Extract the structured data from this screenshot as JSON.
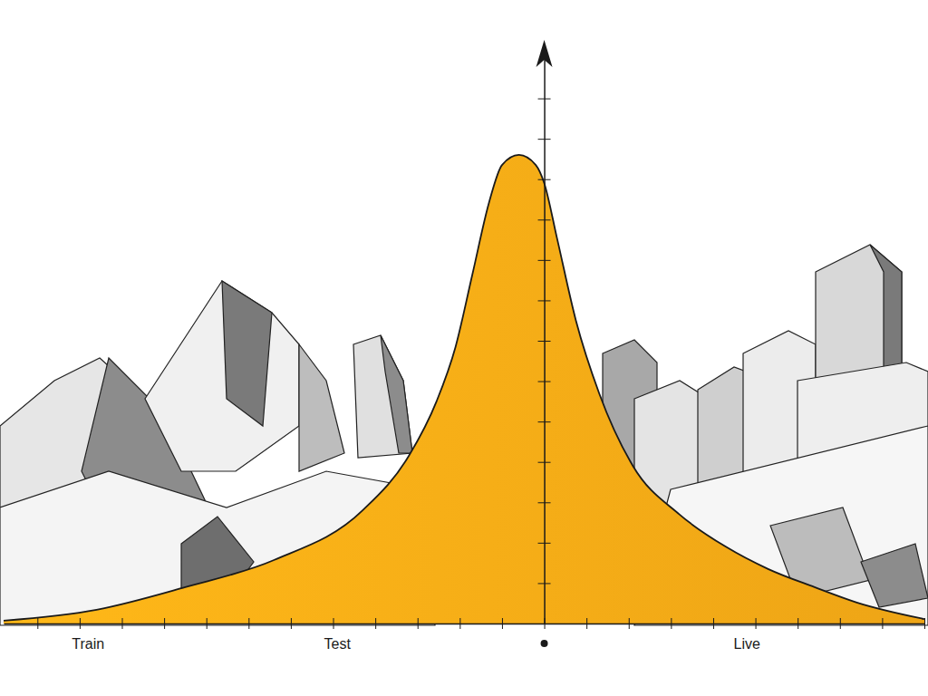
{
  "chart_data": {
    "type": "area",
    "x": [
      -12.8,
      -10.6,
      -8.5,
      -6.4,
      -4.3,
      -3.2,
      -2.55,
      -2.1,
      -1.7,
      -1.3,
      -1.0,
      -0.6,
      -0.2,
      0,
      0.3,
      0.75,
      1.3,
      2.1,
      3.2,
      4.3,
      5.3,
      6.4,
      7.4,
      9.0
    ],
    "values": [
      0.07,
      0.34,
      0.9,
      1.57,
      2.8,
      4.16,
      5.5,
      6.85,
      8.65,
      10.45,
      11.35,
      11.6,
      11.35,
      10.9,
      9.55,
      7.5,
      5.7,
      3.9,
      2.7,
      1.9,
      1.35,
      0.9,
      0.52,
      0.11
    ],
    "color": "#fbae17",
    "xlim": [
      -12.8,
      9.0
    ],
    "ylim": [
      0,
      14
    ],
    "xticks": [
      -12,
      -11,
      -10,
      -9,
      -8,
      -7,
      -6,
      -5,
      -4,
      -3,
      -2,
      -1,
      0,
      1,
      2,
      3,
      4,
      5,
      6,
      7,
      8,
      9
    ],
    "yticks": [
      1,
      2,
      3,
      4,
      5,
      6,
      7,
      8,
      9,
      10,
      11,
      12,
      13
    ],
    "tick_labels": false,
    "grid": false,
    "annotations": [
      {
        "text": "Train",
        "x": -10.8
      },
      {
        "text": "Test",
        "x": -4.9
      },
      {
        "text": "Live",
        "x": 4.8
      }
    ]
  }
}
